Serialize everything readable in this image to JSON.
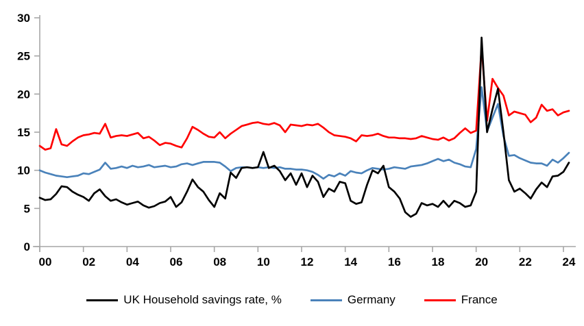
{
  "chart_data": {
    "type": "line",
    "title": "",
    "x_unit": "quarterly",
    "x_start_year": 2000,
    "x_step_years": 0.25,
    "x_axis": {
      "tick_labels": [
        "00",
        "02",
        "04",
        "06",
        "08",
        "10",
        "12",
        "14",
        "16",
        "18",
        "20",
        "22",
        "24"
      ],
      "tick_years": [
        0,
        2,
        4,
        6,
        8,
        10,
        12,
        14,
        16,
        18,
        20,
        22,
        24
      ]
    },
    "y_axis": {
      "min": 0,
      "max": 30,
      "ticks": [
        0,
        5,
        10,
        15,
        20,
        25,
        30
      ]
    },
    "grid": "off",
    "legend_position": "bottom",
    "axis_color": "#a6a6a6",
    "series": [
      {
        "name": "UK Household savings rate, %",
        "color": "#000000",
        "values": [
          6.4,
          6.1,
          6.2,
          6.9,
          7.9,
          7.8,
          7.2,
          6.8,
          6.5,
          6.0,
          7.0,
          7.5,
          6.6,
          6.0,
          6.2,
          5.8,
          5.5,
          5.7,
          5.9,
          5.4,
          5.1,
          5.3,
          5.7,
          5.9,
          6.5,
          5.2,
          5.8,
          7.2,
          8.8,
          7.8,
          7.2,
          6.1,
          5.2,
          7.0,
          6.3,
          9.7,
          9.0,
          10.3,
          10.4,
          10.3,
          10.4,
          12.4,
          10.3,
          10.6,
          9.9,
          8.7,
          9.6,
          8.1,
          9.6,
          7.8,
          9.3,
          8.5,
          6.5,
          7.6,
          7.2,
          8.5,
          8.3,
          6.0,
          5.6,
          5.8,
          8.1,
          10.0,
          9.6,
          10.6,
          7.8,
          7.2,
          6.3,
          4.5,
          3.9,
          4.3,
          5.7,
          5.4,
          5.6,
          5.2,
          6.0,
          5.2,
          6.0,
          5.7,
          5.2,
          5.4,
          7.2,
          27.4,
          15.0,
          18.0,
          20.7,
          15.0,
          8.7,
          7.2,
          7.6,
          7.0,
          6.3,
          7.5,
          8.4,
          7.8,
          9.2,
          9.3,
          9.8,
          11.0
        ]
      },
      {
        "name": "Germany",
        "color": "#4a82ba",
        "values": [
          10.0,
          9.7,
          9.5,
          9.3,
          9.2,
          9.1,
          9.2,
          9.3,
          9.6,
          9.5,
          9.8,
          10.1,
          11.0,
          10.2,
          10.3,
          10.5,
          10.3,
          10.6,
          10.4,
          10.5,
          10.7,
          10.4,
          10.5,
          10.6,
          10.4,
          10.5,
          10.8,
          10.9,
          10.7,
          10.9,
          11.1,
          11.1,
          11.1,
          11.0,
          10.5,
          9.9,
          10.3,
          10.4,
          10.4,
          10.3,
          10.4,
          10.3,
          10.4,
          10.3,
          10.4,
          10.2,
          10.2,
          10.1,
          10.1,
          10.0,
          9.8,
          9.4,
          8.9,
          9.4,
          9.2,
          9.6,
          9.3,
          9.9,
          9.7,
          9.6,
          10.0,
          10.3,
          10.2,
          10.1,
          10.2,
          10.4,
          10.3,
          10.2,
          10.5,
          10.6,
          10.7,
          10.9,
          11.2,
          11.5,
          11.2,
          11.4,
          11.0,
          10.8,
          10.5,
          10.4,
          12.8,
          20.9,
          15.1,
          16.9,
          18.7,
          14.5,
          11.9,
          12.0,
          11.6,
          11.3,
          11.0,
          10.9,
          10.9,
          10.6,
          11.4,
          11.0,
          11.6,
          12.3
        ]
      },
      {
        "name": "France",
        "color": "#ff0000",
        "values": [
          13.2,
          12.7,
          12.9,
          15.4,
          13.4,
          13.2,
          13.8,
          14.3,
          14.6,
          14.7,
          14.9,
          14.8,
          16.1,
          14.3,
          14.5,
          14.6,
          14.5,
          14.7,
          14.9,
          14.2,
          14.4,
          13.9,
          13.3,
          13.6,
          13.5,
          13.2,
          13.0,
          14.2,
          15.7,
          15.3,
          14.8,
          14.4,
          14.3,
          15.0,
          14.2,
          14.8,
          15.3,
          15.8,
          16.0,
          16.2,
          16.3,
          16.1,
          16.0,
          16.2,
          15.9,
          15.0,
          16.0,
          15.9,
          15.8,
          16.0,
          15.9,
          16.1,
          15.6,
          15.0,
          14.6,
          14.5,
          14.4,
          14.2,
          13.8,
          14.6,
          14.5,
          14.6,
          14.8,
          14.5,
          14.3,
          14.3,
          14.2,
          14.2,
          14.1,
          14.2,
          14.5,
          14.3,
          14.1,
          14.0,
          14.3,
          13.9,
          14.2,
          14.9,
          15.5,
          14.9,
          15.2,
          26.2,
          16.5,
          22.0,
          20.8,
          19.8,
          17.2,
          17.7,
          17.5,
          17.3,
          16.3,
          16.9,
          18.6,
          17.8,
          18.0,
          17.2,
          17.6,
          17.8
        ]
      }
    ],
    "legend": {
      "items": [
        {
          "label": "UK Household savings rate, %"
        },
        {
          "label": "Germany"
        },
        {
          "label": "France"
        }
      ]
    }
  }
}
